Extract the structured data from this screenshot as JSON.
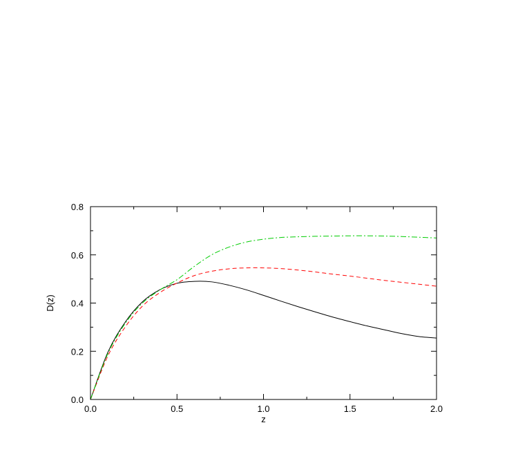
{
  "chart_data": {
    "type": "line",
    "xlabel": "z",
    "ylabel": "D(z)",
    "xlim": [
      0.0,
      2.0
    ],
    "ylim": [
      0.0,
      0.8
    ],
    "x_ticks": [
      "0.0",
      "0.5",
      "1.0",
      "1.5",
      "2.0"
    ],
    "y_ticks": [
      "0.0",
      "0.2",
      "0.4",
      "0.6",
      "0.8"
    ],
    "grid": false,
    "legend": "none",
    "x": [
      0.0,
      0.1,
      0.2,
      0.3,
      0.4,
      0.5,
      0.6,
      0.7,
      0.8,
      0.9,
      1.0,
      1.1,
      1.2,
      1.3,
      1.4,
      1.5,
      1.6,
      1.7,
      1.8,
      1.9,
      2.0
    ],
    "series": [
      {
        "style": "solid",
        "color": "#000000",
        "values": [
          0.0,
          0.195,
          0.32,
          0.405,
          0.455,
          0.482,
          0.49,
          0.488,
          0.474,
          0.455,
          0.432,
          0.408,
          0.385,
          0.363,
          0.342,
          0.323,
          0.305,
          0.289,
          0.273,
          0.261,
          0.255
        ]
      },
      {
        "style": "dashed",
        "color": "#ff0000",
        "values": [
          0.0,
          0.18,
          0.3,
          0.387,
          0.443,
          0.483,
          0.514,
          0.532,
          0.542,
          0.546,
          0.546,
          0.543,
          0.537,
          0.529,
          0.52,
          0.512,
          0.503,
          0.494,
          0.486,
          0.478,
          0.47
        ]
      },
      {
        "style": "dash-dot",
        "color": "#00cc00",
        "values": [
          0.0,
          0.19,
          0.315,
          0.4,
          0.454,
          0.497,
          0.552,
          0.6,
          0.632,
          0.653,
          0.665,
          0.672,
          0.675,
          0.677,
          0.678,
          0.679,
          0.679,
          0.678,
          0.676,
          0.673,
          0.67
        ]
      }
    ]
  }
}
